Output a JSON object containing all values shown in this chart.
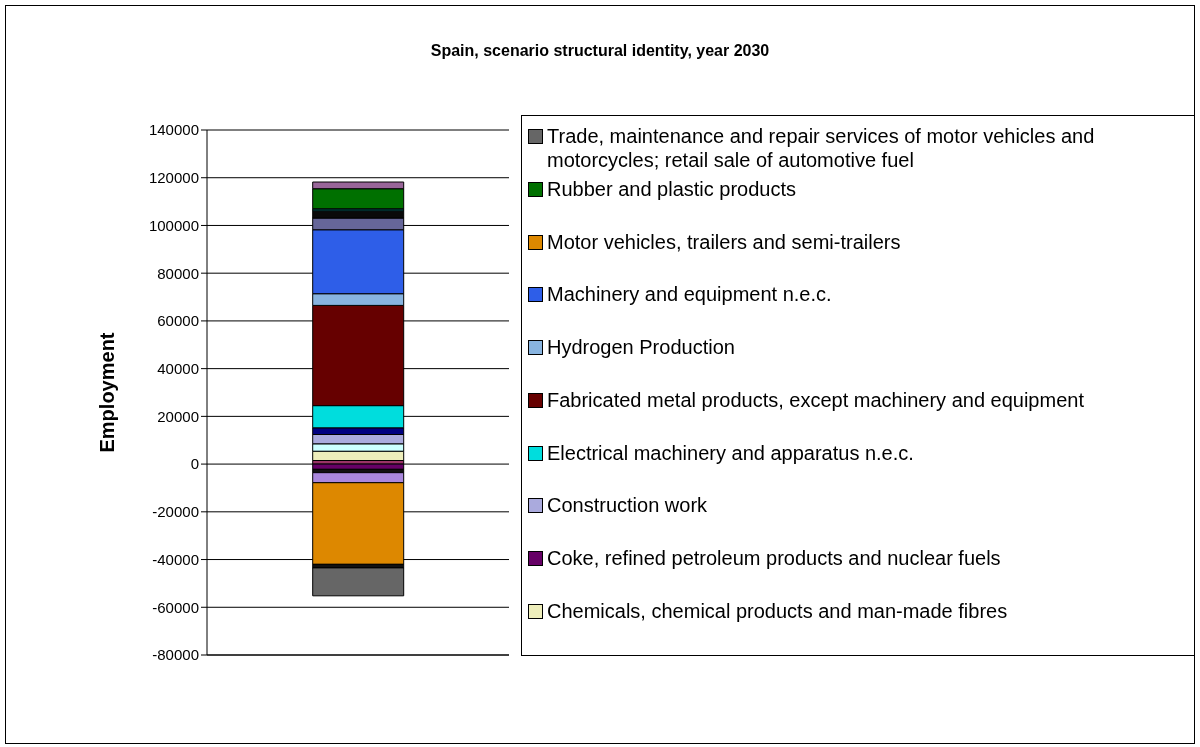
{
  "chart_data": {
    "type": "bar",
    "title": "Spain, scenario structural identity, year 2030",
    "ylabel": "Employment",
    "categories": [
      null
    ],
    "stacked": true,
    "ylim": [
      -80000,
      140000
    ],
    "yticks": [
      -80000,
      -60000,
      -40000,
      -20000,
      0,
      20000,
      40000,
      60000,
      80000,
      100000,
      120000,
      140000
    ],
    "grid": "y",
    "legend": "right",
    "tick_labels": "y",
    "series": [
      {
        "color": "#993366",
        "values": [
          1500
        ]
      },
      {
        "name": "Chemicals, chemical products and man-made fibres",
        "color": "#eeeebb",
        "values": [
          3900
        ]
      },
      {
        "name": "Coke, refined petroleum products and nuclear fuels",
        "color": "#660066",
        "values": [
          -2200
        ]
      },
      {
        "color": "#ccffff",
        "values": [
          3100
        ]
      },
      {
        "name": "Construction work",
        "color": "#aaaadd",
        "values": [
          3900
        ]
      },
      {
        "color": "#111111",
        "values": [
          -1400
        ]
      },
      {
        "color": "#aa88dd",
        "values": [
          -4200
        ]
      },
      {
        "color": "#000080",
        "values": [
          2800
        ]
      },
      {
        "name": "Electrical machinery and apparatus n.e.c.",
        "color": "#00dddd",
        "values": [
          9300
        ]
      },
      {
        "name": "Fabricated metal products, except machinery and equipment",
        "color": "#660000",
        "values": [
          42000
        ]
      },
      {
        "name": "Hydrogen Production",
        "color": "#88b4e0",
        "values": [
          4900
        ]
      },
      {
        "name": "Machinery and equipment n.e.c.",
        "color": "#2e5ee8",
        "values": [
          26800
        ]
      },
      {
        "name": "Motor vehicles, trailers and semi-trailers",
        "color": "#dd8800",
        "values": [
          -34200
        ]
      },
      {
        "color": "#111111",
        "values": [
          -1500
        ]
      },
      {
        "color": "#666699",
        "values": [
          4900
        ]
      },
      {
        "color": "#0a0a0a",
        "values": [
          2900
        ]
      },
      {
        "color": "#004444",
        "values": [
          1000
        ]
      },
      {
        "name": "Rubber and plastic products",
        "color": "#007000",
        "values": [
          8400
        ]
      },
      {
        "name": "Trade, maintenance and repair services of motor vehicles and motorcycles; retail sale of automotive fuel",
        "color": "#666666",
        "values": [
          -11700
        ]
      },
      {
        "color": "#996699",
        "values": [
          2800
        ]
      }
    ]
  }
}
